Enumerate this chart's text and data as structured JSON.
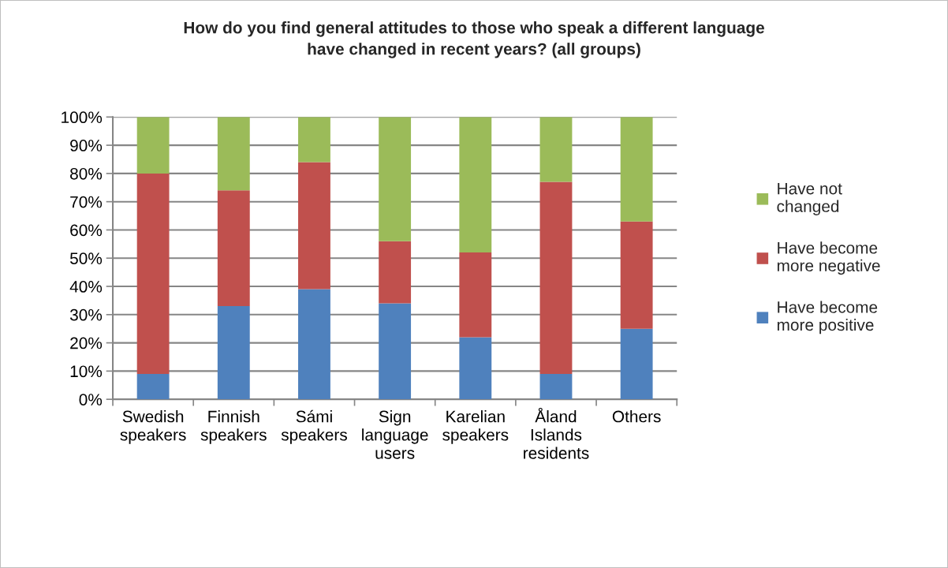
{
  "chart_data": {
    "type": "bar",
    "stacked": true,
    "title": "How do you find general attitudes to those who speak a different language\nhave changed in recent years? (all groups)",
    "categories": [
      "Swedish\nspeakers",
      "Finnish\nspeakers",
      "Sámi\nspeakers",
      "Sign\nlanguage\nusers",
      "Karelian\nspeakers",
      "Åland\nIslands\nresidents",
      "Others"
    ],
    "series": [
      {
        "name": "Have become\nmore positive",
        "color": "#4f81bd",
        "values": [
          9,
          33,
          39,
          34,
          22,
          9,
          25
        ]
      },
      {
        "name": "Have become\nmore negative",
        "color": "#c0504d",
        "values": [
          71,
          41,
          45,
          22,
          30,
          68,
          38
        ]
      },
      {
        "name": "Have not\nchanged",
        "color": "#9bbb59",
        "values": [
          20,
          26,
          16,
          44,
          48,
          23,
          37
        ]
      }
    ],
    "ylim": [
      0,
      100
    ],
    "yticks": [
      {
        "value": 0,
        "label": "0%"
      },
      {
        "value": 10,
        "label": "10%"
      },
      {
        "value": 20,
        "label": "20%"
      },
      {
        "value": 30,
        "label": "30%"
      },
      {
        "value": 40,
        "label": "40%"
      },
      {
        "value": 50,
        "label": "50%"
      },
      {
        "value": 60,
        "label": "60%"
      },
      {
        "value": 70,
        "label": "70%"
      },
      {
        "value": 80,
        "label": "80%"
      },
      {
        "value": 90,
        "label": "90%"
      },
      {
        "value": 100,
        "label": "100%"
      }
    ],
    "grid": "y",
    "legend": "right"
  }
}
